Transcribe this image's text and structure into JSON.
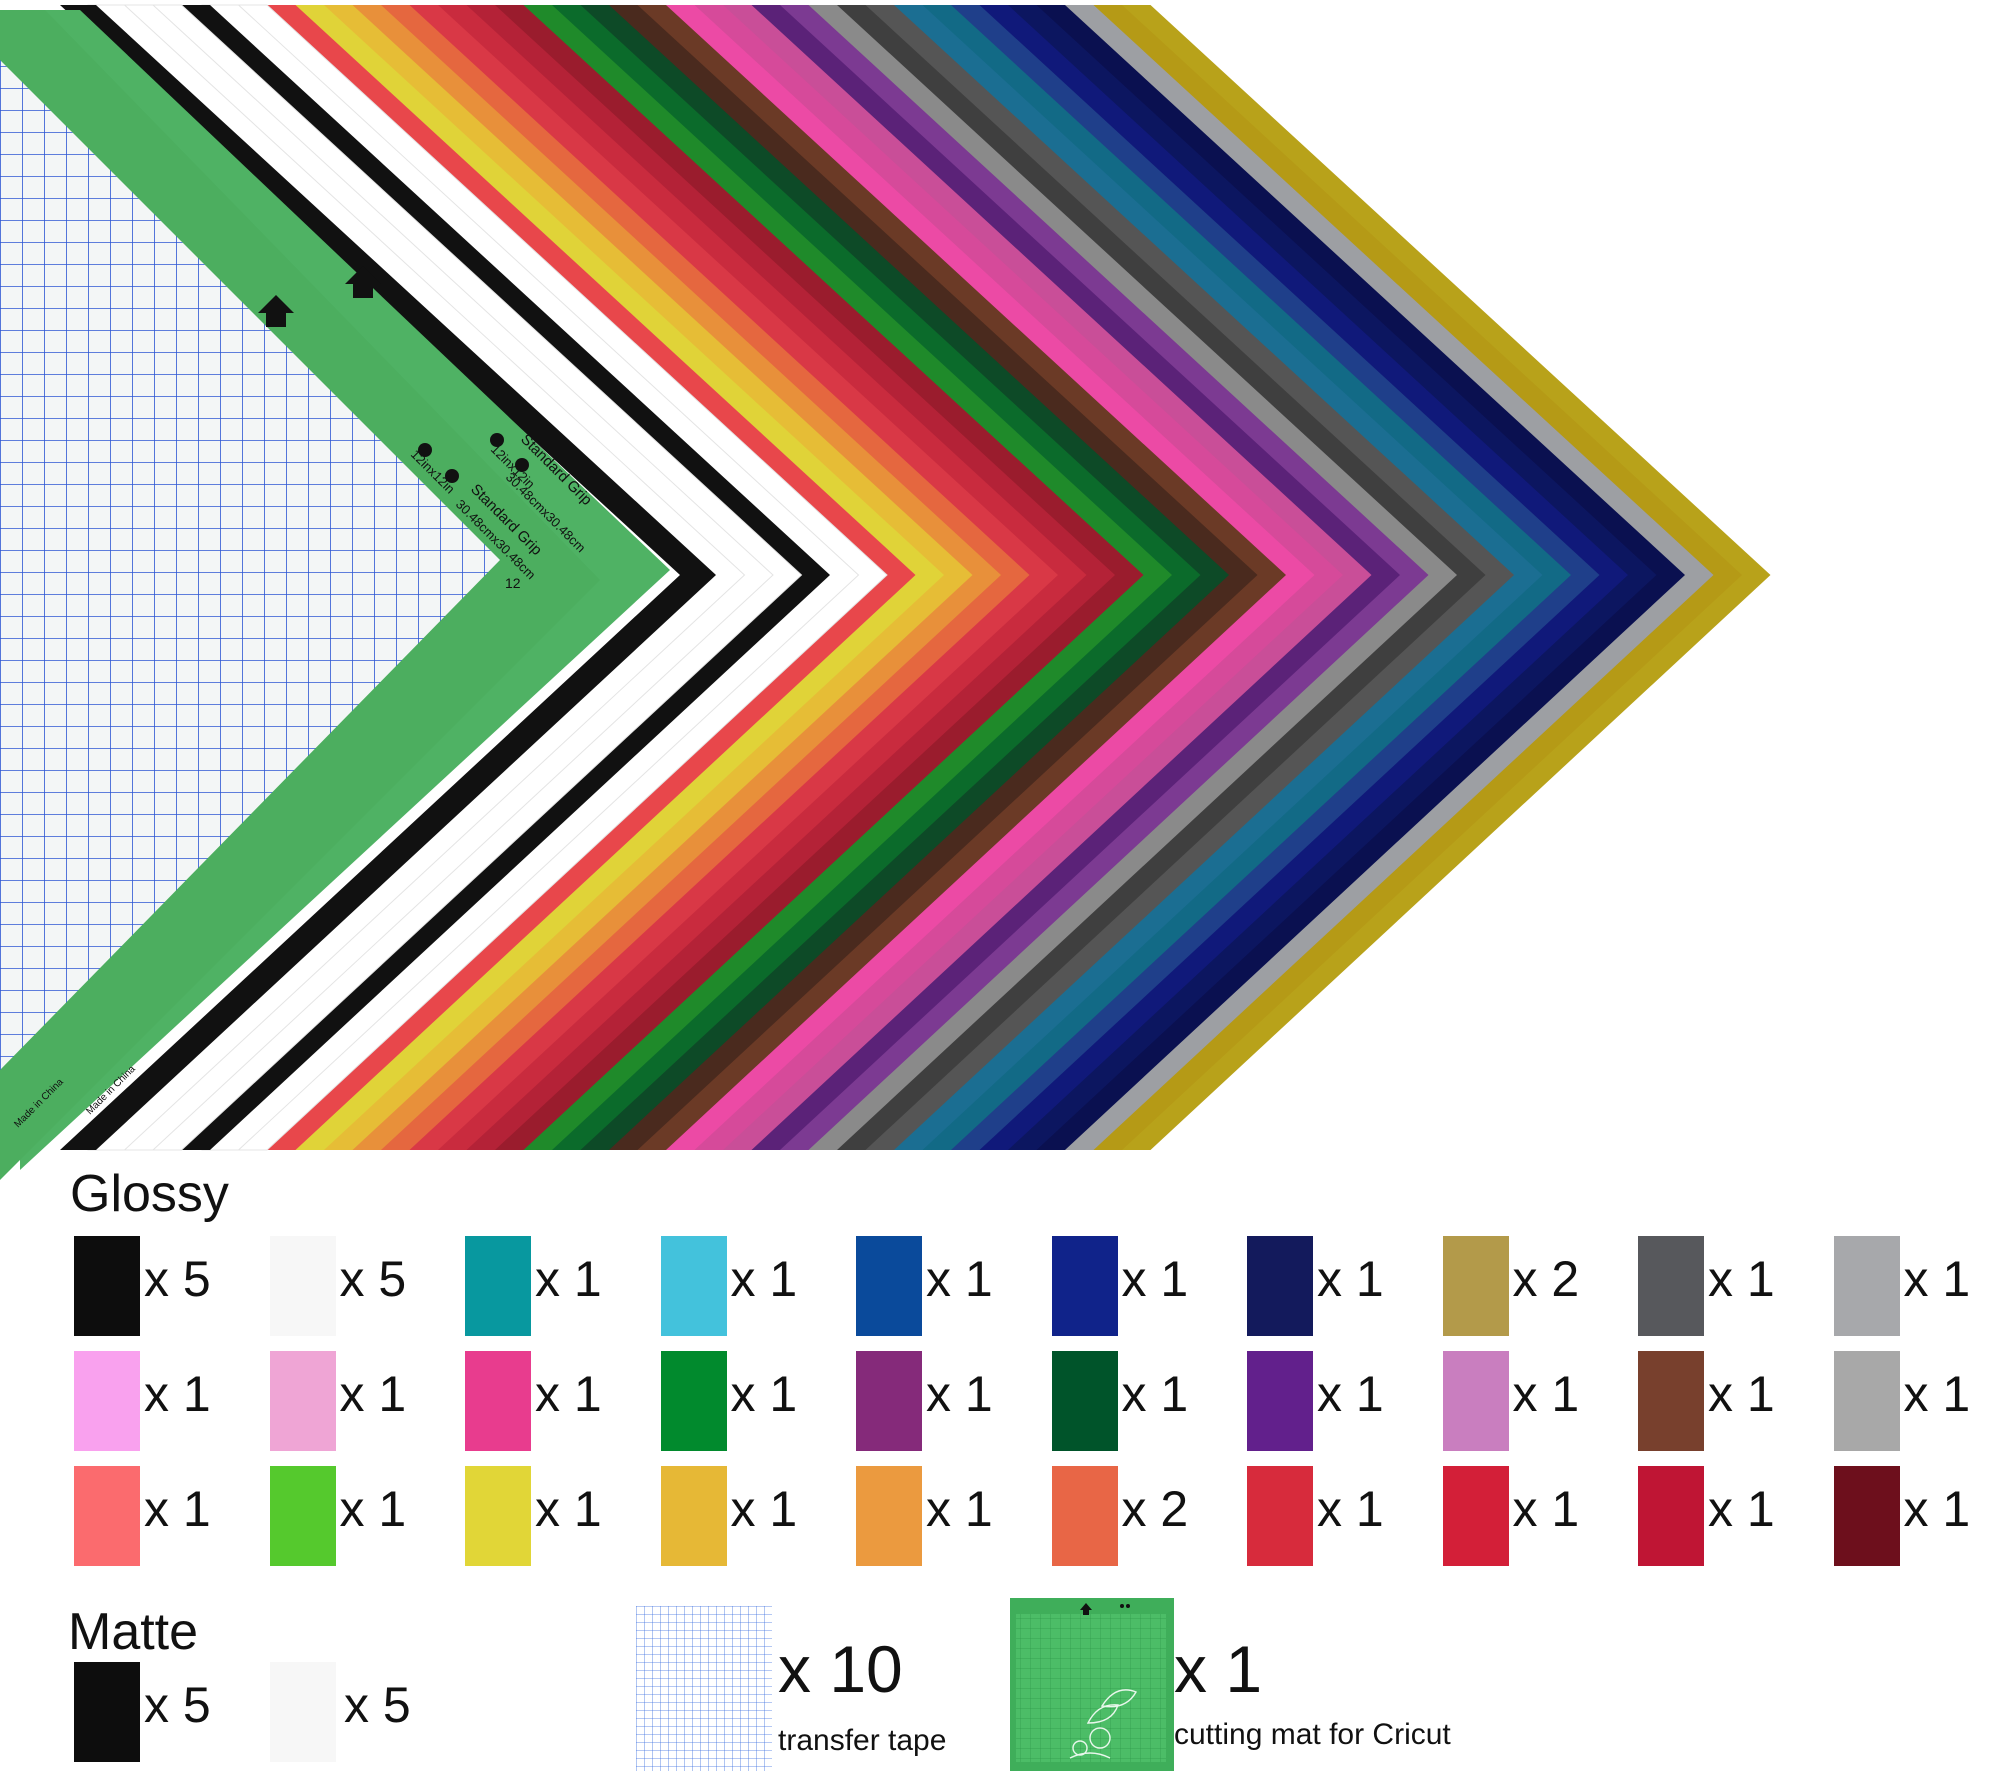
{
  "hero": {
    "mat_front": {
      "label_line1": "Standard Grip",
      "label_line2": "12inx12in",
      "label_line3": "30.48cmx30.48cm",
      "origin_text": "Made in China",
      "tick_label": "12"
    },
    "mat_back": {
      "label_line1": "Standard Grip",
      "label_line2": "12inx12in",
      "label_line3": "30.48cmx30.48cm",
      "origin_text": "Made in China"
    },
    "sheet_colors": [
      "#111111",
      "#ffffff",
      "#ffffff",
      "#ffffff",
      "#111111",
      "#ffffff",
      "#ffffff",
      "#e8474b",
      "#e0d338",
      "#e6bd36",
      "#e8903a",
      "#e5673f",
      "#d93846",
      "#c92b3e",
      "#b42237",
      "#9a1c2d",
      "#1f8a2a",
      "#0b6b2b",
      "#0d4a27",
      "#4a2a1e",
      "#6b3a26",
      "#ec4aa5",
      "#d64a9a",
      "#c94e98",
      "#5b2278",
      "#7c3a92",
      "#8a8a8a",
      "#3f3f3f",
      "#555555",
      "#1b6e92",
      "#126a86",
      "#1f3f8a",
      "#10197a",
      "#0c1660",
      "#0a1050",
      "#9d9fa3",
      "#b59a16",
      "#b8a21a"
    ]
  },
  "glossy": {
    "title": "Glossy",
    "rows": [
      [
        {
          "color": "#0d0d0d",
          "qty": "x 5"
        },
        {
          "color": "#f7f7f7",
          "qty": "x 5"
        },
        {
          "color": "#08989f",
          "qty": "x 1"
        },
        {
          "color": "#43c2dc",
          "qty": "x 1"
        },
        {
          "color": "#0a4a9b",
          "qty": "x 1"
        },
        {
          "color": "#10238a",
          "qty": "x 1"
        },
        {
          "color": "#131a5c",
          "qty": "x 1"
        },
        {
          "color": "#b39a4a",
          "qty": "x 2"
        },
        {
          "color": "#57585c",
          "qty": "x 1"
        },
        {
          "color": "#a7a8ab",
          "qty": "x 1"
        }
      ],
      [
        {
          "color": "#f9a1ee",
          "qty": "x 1"
        },
        {
          "color": "#efa5d5",
          "qty": "x 1"
        },
        {
          "color": "#e83c8e",
          "qty": "x 1"
        },
        {
          "color": "#018a2d",
          "qty": "x 1"
        },
        {
          "color": "#852a7a",
          "qty": "x 1"
        },
        {
          "color": "#00542a",
          "qty": "x 1"
        },
        {
          "color": "#62208c",
          "qty": "x 1"
        },
        {
          "color": "#c97ebf",
          "qty": "x 1"
        },
        {
          "color": "#78402d",
          "qty": "x 1"
        },
        {
          "color": "#a8a8a8",
          "qty": "x 1"
        }
      ],
      [
        {
          "color": "#fb6b6e",
          "qty": "x 1"
        },
        {
          "color": "#55c92d",
          "qty": "x 1"
        },
        {
          "color": "#e1d637",
          "qty": "x 1"
        },
        {
          "color": "#e6b836",
          "qty": "x 1"
        },
        {
          "color": "#eb9a3f",
          "qty": "x 1"
        },
        {
          "color": "#e86646",
          "qty": "x 2"
        },
        {
          "color": "#d72b3c",
          "qty": "x 1"
        },
        {
          "color": "#d31f38",
          "qty": "x 1"
        },
        {
          "color": "#bf1534",
          "qty": "x 1"
        },
        {
          "color": "#6d0f1c",
          "qty": "x 1"
        }
      ]
    ]
  },
  "matte": {
    "title": "Matte",
    "items": [
      {
        "color": "#0d0d0d",
        "qty": "x 5"
      },
      {
        "color": "#f7f7f7",
        "qty": "x 5"
      }
    ]
  },
  "extras": {
    "transfer_tape": {
      "qty": "x 10",
      "caption": "transfer tape",
      "grid_color": "#2a55d6"
    },
    "cutting_mat": {
      "qty": "x 1",
      "caption": "cutting mat for Cricut",
      "mat_color": "#4cbd67",
      "mat_label": "Standard Grip"
    }
  }
}
